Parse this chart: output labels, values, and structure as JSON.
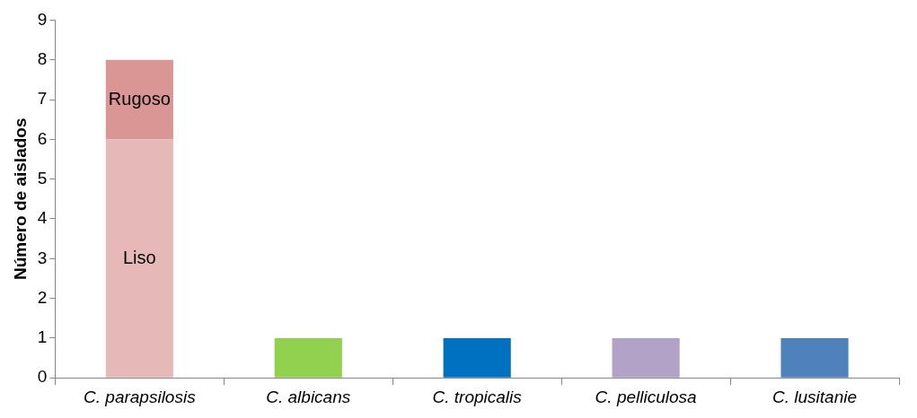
{
  "chart_data": {
    "type": "bar",
    "ylabel": "Número de aislados",
    "categories": [
      "C. parapsilosis",
      "C. albicans",
      "C. tropicalis",
      "C. pelliculosa",
      "C. lusitanie"
    ],
    "stacked": true,
    "series": [
      {
        "name": "Liso",
        "colors": [
          "#e6b8b7",
          "#92d050",
          "#0070c0",
          "#b3a2c7",
          "#4f81bd"
        ],
        "values": [
          6,
          1,
          1,
          1,
          1
        ]
      },
      {
        "name": "Rugoso",
        "color": "#da9694",
        "values": [
          2,
          null,
          null,
          null,
          null
        ]
      }
    ],
    "ylim": [
      0,
      9
    ],
    "yticks": [
      0,
      1,
      2,
      3,
      4,
      5,
      6,
      7,
      8,
      9
    ]
  }
}
